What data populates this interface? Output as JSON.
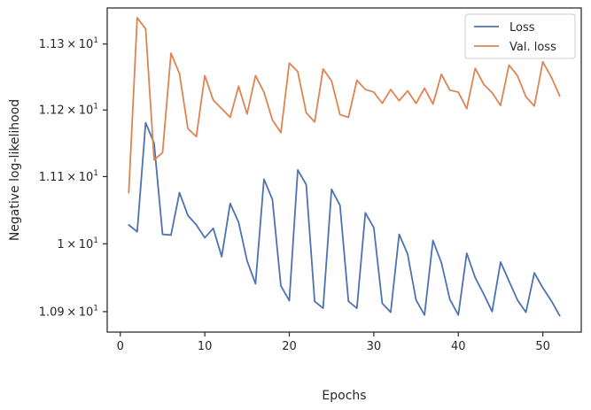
{
  "chart_data": {
    "type": "line",
    "title": "",
    "xlabel": "Epochs",
    "ylabel": "Negative log-likelihood",
    "xlim": [
      -1.55,
      54.55
    ],
    "ylim": [
      10.87,
      11.355
    ],
    "y_scale": "log",
    "grid": false,
    "legend_position": "top-right",
    "x_ticks": [
      0,
      10,
      20,
      30,
      40,
      50
    ],
    "x_tick_labels": [
      "0",
      "10",
      "20",
      "30",
      "40",
      "50"
    ],
    "y_ticks": [
      10.9,
      11.0,
      11.1,
      11.2,
      11.3
    ],
    "y_tick_labels": [
      {
        "base": "1.09",
        "times": "×",
        "pow_base": "10",
        "exp": "1"
      },
      {
        "base": "1",
        "times": "×",
        "pow_base": "10",
        "exp": "1"
      },
      {
        "base": "1.11",
        "times": "×",
        "pow_base": "10",
        "exp": "1"
      },
      {
        "base": "1.12",
        "times": "×",
        "pow_base": "10",
        "exp": "1"
      },
      {
        "base": "1.13",
        "times": "×",
        "pow_base": "10",
        "exp": "1"
      }
    ],
    "x": [
      1,
      2,
      3,
      4,
      5,
      6,
      7,
      8,
      9,
      10,
      11,
      12,
      13,
      14,
      15,
      16,
      17,
      18,
      19,
      20,
      21,
      22,
      23,
      24,
      25,
      26,
      27,
      28,
      29,
      30,
      31,
      32,
      33,
      34,
      35,
      36,
      37,
      38,
      39,
      40,
      41,
      42,
      43,
      44,
      45,
      46,
      47,
      48,
      49,
      50,
      51,
      52
    ],
    "series": [
      {
        "name": "Loss",
        "color": "#4c72b0",
        "values": [
          11.028,
          11.018,
          11.181,
          11.15,
          11.014,
          11.013,
          11.076,
          11.042,
          11.028,
          11.009,
          11.023,
          10.981,
          11.06,
          11.032,
          10.975,
          10.941,
          11.096,
          11.066,
          10.938,
          10.916,
          11.11,
          11.088,
          10.915,
          10.905,
          11.081,
          11.057,
          10.915,
          10.905,
          11.046,
          11.024,
          10.912,
          10.899,
          11.014,
          10.985,
          10.917,
          10.895,
          11.005,
          10.972,
          10.918,
          10.895,
          10.986,
          10.95,
          10.926,
          10.9,
          10.973,
          10.945,
          10.917,
          10.899,
          10.957,
          10.935,
          10.916,
          10.894
        ]
      },
      {
        "name": "Val. loss",
        "color": "#dd8452",
        "values": [
          11.076,
          11.34,
          11.323,
          11.125,
          11.136,
          11.286,
          11.255,
          11.172,
          11.16,
          11.252,
          11.215,
          11.202,
          11.189,
          11.236,
          11.194,
          11.252,
          11.227,
          11.185,
          11.166,
          11.271,
          11.258,
          11.196,
          11.182,
          11.262,
          11.244,
          11.193,
          11.189,
          11.245,
          11.231,
          11.227,
          11.21,
          11.231,
          11.214,
          11.229,
          11.21,
          11.233,
          11.209,
          11.254,
          11.23,
          11.227,
          11.202,
          11.263,
          11.239,
          11.226,
          11.207,
          11.268,
          11.252,
          11.22,
          11.206,
          11.273,
          11.25,
          11.221
        ]
      }
    ]
  }
}
